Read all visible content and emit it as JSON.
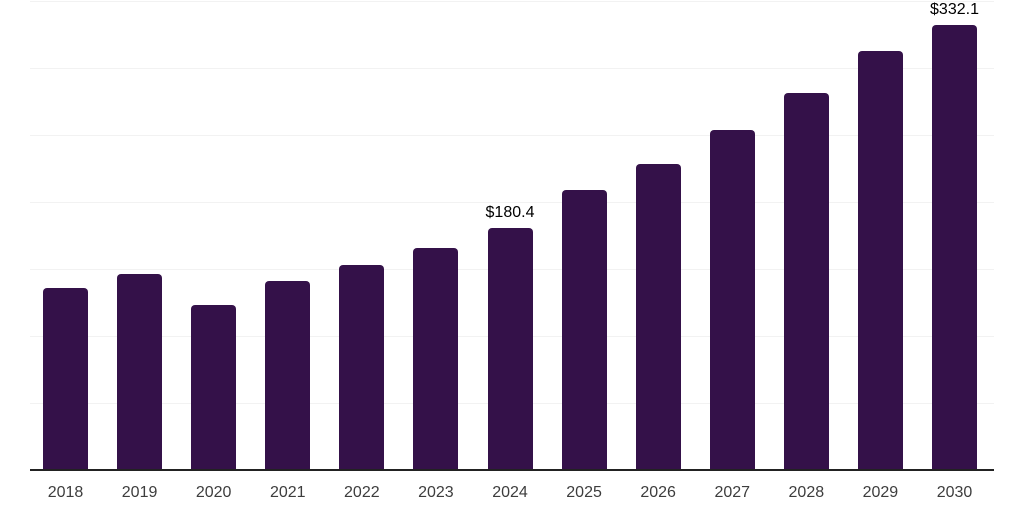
{
  "chart_data": {
    "type": "bar",
    "title": "",
    "xlabel": "",
    "ylabel": "",
    "categories": [
      "2018",
      "2019",
      "2020",
      "2021",
      "2022",
      "2023",
      "2024",
      "2025",
      "2026",
      "2027",
      "2028",
      "2029",
      "2030"
    ],
    "values": [
      135.6,
      146.0,
      122.9,
      140.8,
      152.8,
      165.8,
      180.4,
      208.8,
      228.7,
      253.4,
      281.0,
      312.4,
      332.1
    ],
    "labels": [
      null,
      null,
      null,
      null,
      null,
      null,
      "$180.4",
      null,
      null,
      null,
      null,
      null,
      "$332.1"
    ],
    "currency_prefix": "$",
    "ylim": [
      0,
      350
    ],
    "gridline_step": 50,
    "grid": true,
    "legend": "none",
    "colors": {
      "bar": "#341149",
      "gridline": "#f2f2f2",
      "axis_line": "#222222",
      "tick_label": "#3d3d3d",
      "data_label": "#000000",
      "background": "#ffffff"
    }
  }
}
